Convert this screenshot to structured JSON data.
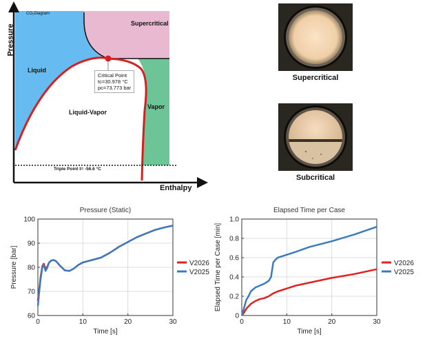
{
  "phase_diagram": {
    "title": "CO₂Diagram",
    "y_axis": "Pressure",
    "x_axis": "Enthalpy",
    "regions": {
      "supercritical": "Supercritical",
      "liquid": "Liquid",
      "liquid_vapor": "Liquid-Vapor",
      "vapor": "Vapor"
    },
    "critical_point": {
      "label": "Critical Point",
      "temp": "tᴄ=30.978 °C",
      "pressure": "pᴄ=73.773 bar"
    },
    "triple_point": "Triple Point t= -56.6 °C",
    "colors": {
      "liquid": "#66bbf0",
      "supercritical": "#e8b9d0",
      "vapor": "#6cc497",
      "curve": "#d42020"
    }
  },
  "photos": {
    "top_caption": "Supercritical",
    "bottom_caption": "Subcritical"
  },
  "chart_data": [
    {
      "type": "line",
      "title": "Pressure (Static)",
      "xlabel": "Time [s]",
      "ylabel": "Pressure [bar]",
      "xlim": [
        0,
        30
      ],
      "ylim": [
        60,
        100
      ],
      "xticks": [
        0,
        10,
        20,
        30
      ],
      "yticks": [
        60,
        70,
        80,
        90,
        100
      ],
      "grid": true,
      "legend": "right",
      "series": [
        {
          "name": "V2026",
          "color": "#e02020",
          "x": [
            0,
            0.3,
            0.6,
            1,
            1.3,
            1.7,
            2,
            2.5,
            3,
            3.5,
            4,
            5,
            6,
            7,
            8,
            9,
            10,
            12,
            14,
            16,
            18,
            20,
            22,
            24,
            26,
            28,
            30
          ],
          "y": [
            66,
            71,
            76,
            80.5,
            81.5,
            79.5,
            80,
            82,
            82.8,
            83,
            82.6,
            80.5,
            78.7,
            78.5,
            79.5,
            81,
            82,
            83,
            84,
            86,
            88.5,
            90.5,
            92.5,
            94,
            95.5,
            96.5,
            97.3
          ]
        },
        {
          "name": "V2025",
          "color": "#3a7bbf",
          "x": [
            0,
            0.3,
            0.6,
            1,
            1.3,
            1.7,
            2,
            2.5,
            3,
            3.5,
            4,
            5,
            6,
            7,
            8,
            9,
            10,
            12,
            14,
            16,
            18,
            20,
            22,
            24,
            26,
            28,
            30
          ],
          "y": [
            64,
            70,
            75,
            80,
            81,
            78.5,
            79.5,
            82,
            82.8,
            83,
            82.6,
            80.5,
            78.7,
            78.5,
            79.5,
            81,
            82,
            83,
            84,
            86,
            88.5,
            90.5,
            92.5,
            94,
            95.5,
            96.5,
            97.3
          ]
        }
      ]
    },
    {
      "type": "line",
      "title": "Elapsed Time per Case",
      "xlabel": "Time [s]",
      "ylabel": "Elapsed Time per Case [min]",
      "xlim": [
        0,
        30
      ],
      "ylim": [
        0,
        1
      ],
      "xticks": [
        0,
        10,
        20,
        30
      ],
      "yticks": [
        0,
        0.2,
        0.4,
        0.6,
        0.8,
        1
      ],
      "ytick_labels": [
        "0",
        "0.2",
        "0.4",
        "0.6",
        "0.8",
        "1.0"
      ],
      "grid": true,
      "legend": "right",
      "series": [
        {
          "name": "V2026",
          "color": "#e02020",
          "x": [
            0,
            0.5,
            1,
            2,
            3,
            4,
            5,
            6,
            7,
            8,
            10,
            12,
            15,
            20,
            25,
            30
          ],
          "y": [
            0,
            0.03,
            0.07,
            0.12,
            0.15,
            0.17,
            0.18,
            0.2,
            0.23,
            0.25,
            0.28,
            0.31,
            0.34,
            0.39,
            0.43,
            0.48
          ]
        },
        {
          "name": "V2025",
          "color": "#3a7bbf",
          "x": [
            0,
            0.5,
            1,
            1.5,
            2,
            3,
            4,
            5,
            6,
            6.5,
            7,
            7.5,
            8,
            10,
            12,
            15,
            20,
            25,
            30
          ],
          "y": [
            0,
            0.08,
            0.16,
            0.2,
            0.25,
            0.29,
            0.31,
            0.33,
            0.36,
            0.4,
            0.55,
            0.58,
            0.6,
            0.63,
            0.66,
            0.71,
            0.77,
            0.84,
            0.92
          ]
        }
      ]
    }
  ]
}
